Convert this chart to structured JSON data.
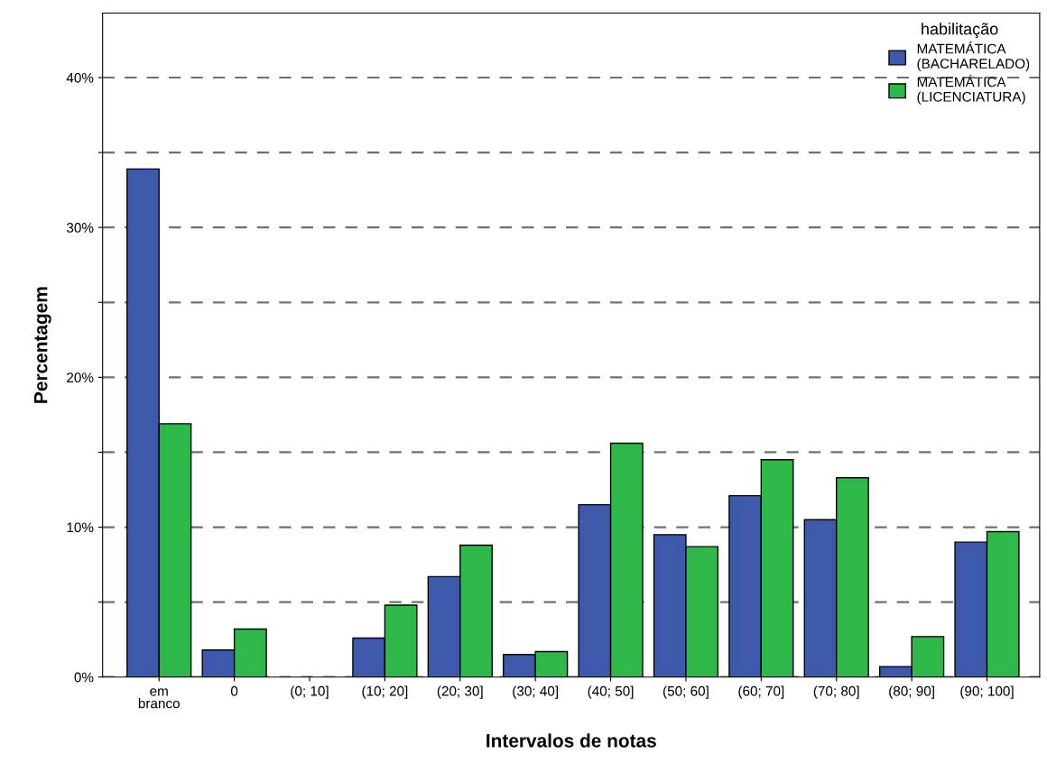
{
  "chart_data": {
    "type": "bar",
    "xlabel": "Intervalos de notas",
    "ylabel": "Percentagem",
    "legend_title": "habilitação",
    "categories": [
      "em\nbranco",
      "0",
      "(0; 10]",
      "(10; 20]",
      "(20; 30]",
      "(30; 40]",
      "(40; 50]",
      "(50; 60]",
      "(60; 70]",
      "(70; 80]",
      "(80; 90]",
      "(90; 100]"
    ],
    "series": [
      {
        "name": "MATEMÁTICA\n(BACHARELADO)",
        "color": "#3e58ac",
        "values": [
          33.9,
          1.8,
          null,
          2.6,
          6.7,
          1.5,
          11.5,
          9.5,
          12.1,
          10.5,
          0.7,
          9.0
        ]
      },
      {
        "name": "MATEMÁTICA\n(LICENCIATURA)",
        "color": "#2eb84a",
        "values": [
          16.9,
          3.2,
          null,
          4.8,
          8.8,
          1.7,
          15.6,
          8.7,
          14.5,
          13.3,
          2.7,
          9.7
        ]
      }
    ],
    "ylim": [
      0,
      44.3
    ],
    "yticks": [
      {
        "value": 0,
        "label": "0%"
      },
      {
        "value": 5,
        "label": null
      },
      {
        "value": 10,
        "label": "10%"
      },
      {
        "value": 15,
        "label": null
      },
      {
        "value": 20,
        "label": "20%"
      },
      {
        "value": 25,
        "label": null
      },
      {
        "value": 30,
        "label": "30%"
      },
      {
        "value": 35,
        "label": null
      },
      {
        "value": 40,
        "label": "40%"
      }
    ],
    "grid": "y",
    "legend": "top right"
  }
}
